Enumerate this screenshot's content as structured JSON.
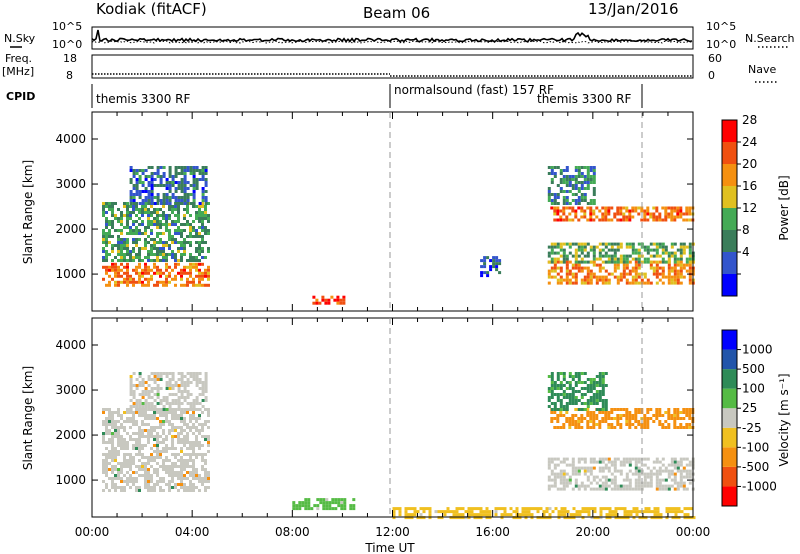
{
  "header": {
    "title": "Kodiak (fitACF)",
    "beam": "Beam 06",
    "date": "13/Jan/2016"
  },
  "noise_panel": {
    "left_label": "N.Sky",
    "left_ticks": [
      "10^5",
      "10^0"
    ],
    "right_ticks": [
      "10^5",
      "10^0"
    ],
    "right_label": "N.Search"
  },
  "freq_panel": {
    "left_label_1": "Freq.",
    "left_label_2": "[MHz]",
    "left_ticks": [
      "18",
      "8"
    ],
    "right_ticks": [
      "60",
      "0"
    ],
    "right_label": "Nave"
  },
  "cpid_panel": {
    "label": "CPID",
    "programs": [
      {
        "name": "themis 3300 RF"
      },
      {
        "name": "normalsound (fast) 157 RF"
      },
      {
        "name": "themis 3300 RF"
      }
    ]
  },
  "colors": {
    "power_scale": [
      "#0000ff",
      "#3355cc",
      "#3a7d5a",
      "#44aa55",
      "#e0c020",
      "#f59010",
      "#f05010",
      "#ff0000"
    ],
    "velocity_scale": [
      "#ff0000",
      "#f05010",
      "#f59010",
      "#f0c020",
      "#c8c8c0",
      "#55bb44",
      "#2e8b57",
      "#2255aa",
      "#0000ff"
    ],
    "ground_scatter": "#c8c8c0"
  },
  "chart_data": [
    {
      "type": "heatmap",
      "name": "power",
      "xlabel": "",
      "ylabel": "Slant Range [km]",
      "y_ticks": [
        1000,
        2000,
        3000,
        4000
      ],
      "ylim": [
        180,
        4600
      ],
      "x_ticks": [
        "00:00",
        "04:00",
        "08:00",
        "12:00",
        "16:00",
        "20:00",
        "00:00"
      ],
      "xlim_hours": [
        0,
        24
      ],
      "colorbar": {
        "label": "Power [dB]",
        "ticks": [
          "28",
          "24",
          "20",
          "16",
          "12",
          "8",
          "4"
        ],
        "range": [
          0,
          32
        ]
      },
      "regions": [
        {
          "t": [
            0.4,
            4.6
          ],
          "range": [
            750,
            1250
          ],
          "level": 24
        },
        {
          "t": [
            0.4,
            4.6
          ],
          "range": [
            1300,
            2600
          ],
          "level": 12
        },
        {
          "t": [
            1.5,
            4.5
          ],
          "range": [
            2600,
            3400
          ],
          "level": 8
        },
        {
          "t": [
            8.8,
            10.0
          ],
          "range": [
            370,
            520
          ],
          "level": 26
        },
        {
          "t": [
            15.5,
            16.3
          ],
          "range": [
            950,
            1400
          ],
          "level": 6
        },
        {
          "t": [
            18.2,
            24.0
          ],
          "range": [
            800,
            1300
          ],
          "level": 22
        },
        {
          "t": [
            18.2,
            24.0
          ],
          "range": [
            1300,
            1700
          ],
          "level": 14
        },
        {
          "t": [
            18.3,
            24.0
          ],
          "range": [
            2200,
            2500
          ],
          "level": 24
        },
        {
          "t": [
            18.2,
            20.0
          ],
          "range": [
            2600,
            3400
          ],
          "level": 10
        }
      ]
    },
    {
      "type": "heatmap",
      "name": "velocity",
      "xlabel": "Time UT",
      "ylabel": "Slant Range [km]",
      "y_ticks": [
        1000,
        2000,
        3000,
        4000
      ],
      "ylim": [
        180,
        4600
      ],
      "x_ticks": [
        "00:00",
        "04:00",
        "08:00",
        "12:00",
        "16:00",
        "20:00",
        "00:00"
      ],
      "xlim_hours": [
        0,
        24
      ],
      "colorbar": {
        "label": "Velocity [m s⁻¹]",
        "ticks": [
          "1000",
          "500",
          "100",
          "25",
          "-25",
          "-100",
          "-500",
          "-1000"
        ],
        "range": [
          -1200,
          1200
        ]
      },
      "regions": [
        {
          "t": [
            0.4,
            4.6
          ],
          "range": [
            750,
            2600
          ],
          "velocity": "ground"
        },
        {
          "t": [
            1.5,
            4.5
          ],
          "range": [
            2600,
            3400
          ],
          "velocity": "ground"
        },
        {
          "t": [
            8.0,
            10.5
          ],
          "range": [
            350,
            600
          ],
          "velocity": 60
        },
        {
          "t": [
            12.0,
            24.0
          ],
          "range": [
            200,
            400
          ],
          "velocity": -60
        },
        {
          "t": [
            18.2,
            24.0
          ],
          "range": [
            800,
            1500
          ],
          "velocity": "ground"
        },
        {
          "t": [
            18.3,
            24.0
          ],
          "range": [
            2200,
            2600
          ],
          "velocity": -200
        },
        {
          "t": [
            18.2,
            20.5
          ],
          "range": [
            2600,
            3400
          ],
          "velocity": 150
        }
      ]
    }
  ]
}
